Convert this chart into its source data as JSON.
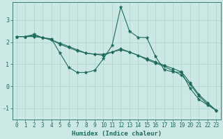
{
  "title": "",
  "xlabel": "Humidex (Indice chaleur)",
  "bg_color": "#cce8e4",
  "line_color": "#1e6b5e",
  "grid_color_major": "#aad4cc",
  "grid_color_minor": "#bbddd8",
  "xlim": [
    -0.5,
    23.5
  ],
  "ylim": [
    -1.5,
    3.8
  ],
  "xticks": [
    0,
    1,
    2,
    3,
    4,
    5,
    6,
    7,
    8,
    9,
    10,
    11,
    12,
    13,
    14,
    15,
    16,
    17,
    18,
    19,
    20,
    21,
    22,
    23
  ],
  "yticks": [
    -1,
    0,
    1,
    2,
    3
  ],
  "line1_x": [
    0,
    1,
    2,
    3,
    4,
    5,
    6,
    7,
    8,
    9,
    10,
    11,
    12,
    13,
    14,
    15,
    16,
    17,
    18,
    19,
    20,
    21,
    22,
    23
  ],
  "line1_y": [
    2.25,
    2.25,
    2.35,
    2.2,
    2.15,
    1.5,
    0.85,
    0.62,
    0.62,
    0.72,
    1.25,
    1.85,
    3.6,
    2.5,
    2.22,
    2.2,
    1.35,
    0.75,
    0.65,
    0.62,
    -0.1,
    -0.6,
    -0.85,
    -1.1
  ],
  "line2_x": [
    0,
    1,
    2,
    3,
    4,
    5,
    6,
    7,
    8,
    9,
    10,
    11,
    12,
    13,
    14,
    15,
    16,
    17,
    18,
    19,
    20,
    21,
    22,
    23
  ],
  "line2_y": [
    2.25,
    2.25,
    2.3,
    2.2,
    2.1,
    1.95,
    1.8,
    1.65,
    1.5,
    1.45,
    1.4,
    1.55,
    1.7,
    1.55,
    1.4,
    1.25,
    1.1,
    0.95,
    0.8,
    0.65,
    0.15,
    -0.38,
    -0.75,
    -1.1
  ],
  "line3_x": [
    0,
    1,
    2,
    3,
    4,
    5,
    6,
    7,
    8,
    9,
    10,
    11,
    12,
    13,
    14,
    15,
    16,
    17,
    18,
    19,
    20,
    21,
    22,
    23
  ],
  "line3_y": [
    2.25,
    2.25,
    2.25,
    2.2,
    2.1,
    1.9,
    1.75,
    1.6,
    1.5,
    1.45,
    1.45,
    1.55,
    1.65,
    1.55,
    1.4,
    1.2,
    1.05,
    0.9,
    0.7,
    0.5,
    0.08,
    -0.45,
    -0.82,
    -1.1
  ],
  "tick_fontsize": 5.5,
  "xlabel_fontsize": 6.5,
  "marker1": "*",
  "marker2": "D",
  "marker3": "D",
  "markersize1": 3.5,
  "markersize2": 2.0,
  "markersize3": 2.0,
  "linewidth": 0.8
}
